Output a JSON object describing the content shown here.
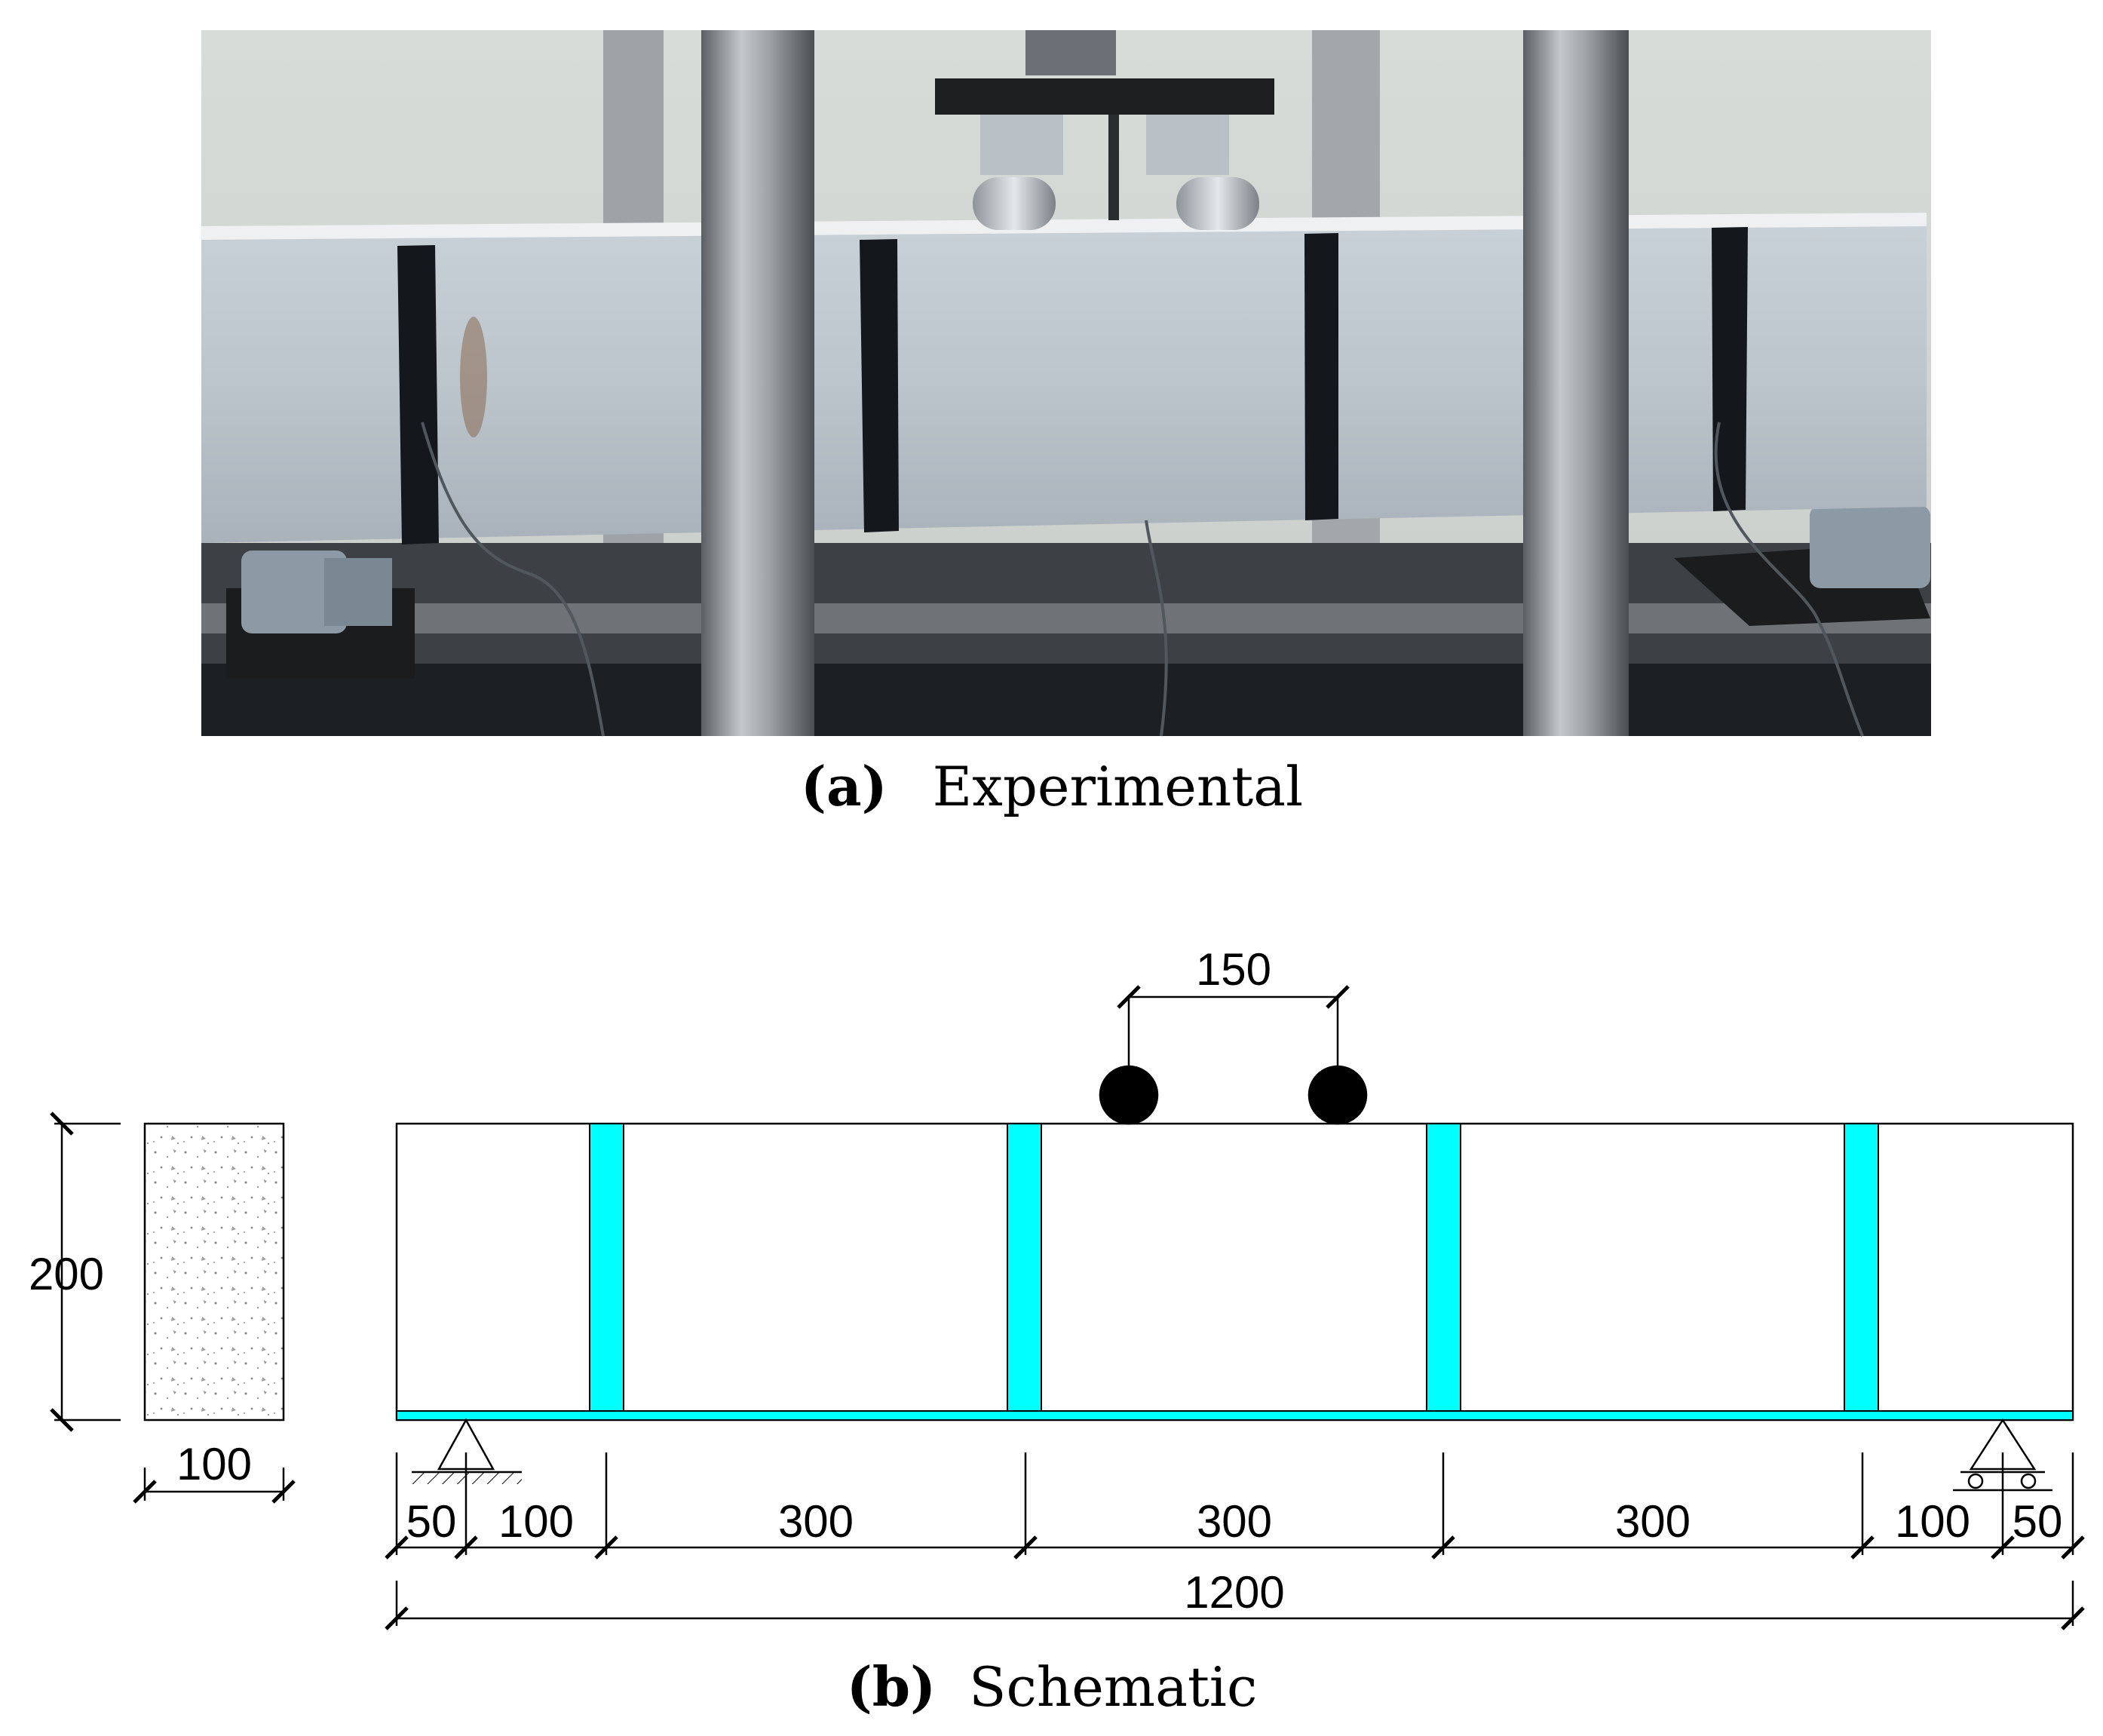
{
  "panel_a": {
    "caption_letter": "(a)",
    "caption_text": "Experimental"
  },
  "panel_b": {
    "caption_letter": "(b)",
    "caption_text": "Schematic",
    "cross_section": {
      "height_label": "200",
      "width_label": "100"
    },
    "load_spacing_label": "150",
    "span_segments": [
      "50",
      "100",
      "300",
      "300",
      "300",
      "100",
      "50"
    ],
    "total_length_label": "1200",
    "colors": {
      "strip": "#00ffff",
      "line": "#000000",
      "roller": "#000000"
    }
  }
}
